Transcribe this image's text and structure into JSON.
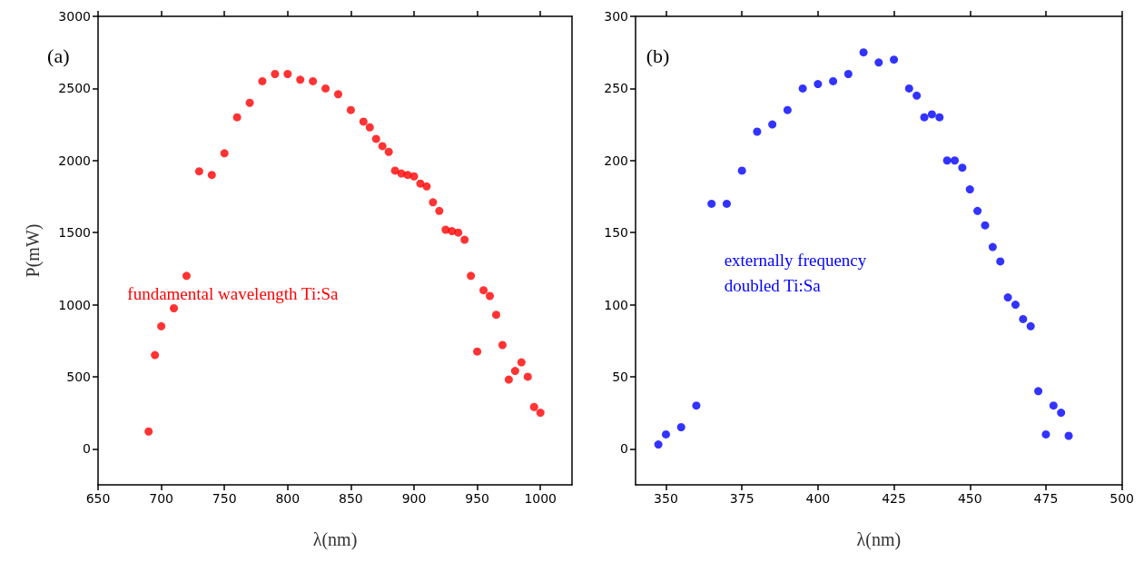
{
  "chart_data": [
    {
      "type": "scatter",
      "ylabel": "P(mW)",
      "xlabel": "λ(nm)",
      "annotations": [
        "(a)",
        "fundamental wavelength Ti:Sa"
      ],
      "marker": "circle",
      "grid": false,
      "xlim": [
        650,
        1025
      ],
      "xticks": [
        650,
        700,
        750,
        800,
        850,
        900,
        950,
        1000
      ],
      "ylim": [
        -250,
        3000
      ],
      "yticks": [
        0,
        500,
        1000,
        1500,
        2000,
        2500,
        3000
      ],
      "series": [
        {
          "color": "#ff0000",
          "x": [
            690,
            695,
            700,
            710,
            720,
            730,
            740,
            750,
            760,
            770,
            780,
            790,
            800,
            810,
            820,
            830,
            840,
            850,
            860,
            865,
            870,
            875,
            880,
            885,
            890,
            895,
            900,
            905,
            910,
            915,
            920,
            925,
            930,
            935,
            940,
            945,
            950,
            955,
            960,
            965,
            970,
            975,
            980,
            985,
            990,
            995,
            1000
          ],
          "values": [
            120,
            650,
            850,
            975,
            1200,
            1925,
            1900,
            2050,
            2300,
            2400,
            2550,
            2600,
            2600,
            2560,
            2550,
            2500,
            2460,
            2350,
            2270,
            2230,
            2150,
            2100,
            2060,
            1930,
            1910,
            1900,
            1890,
            1840,
            1820,
            1710,
            1650,
            1520,
            1510,
            1500,
            1450,
            1200,
            675,
            1100,
            1060,
            930,
            720,
            480,
            540,
            600,
            500,
            290,
            250
          ]
        }
      ]
    },
    {
      "type": "scatter",
      "xlabel": "λ(nm)",
      "annotations": [
        "(b)",
        "externally frequency\ndoubled Ti:Sa"
      ],
      "marker": "circle",
      "grid": false,
      "xlim": [
        340,
        500
      ],
      "xticks": [
        350,
        375,
        400,
        425,
        450,
        475,
        500
      ],
      "ylim": [
        -25,
        300
      ],
      "yticks": [
        0,
        50,
        100,
        150,
        200,
        250,
        300
      ],
      "series": [
        {
          "color": "#0000ff",
          "x": [
            347.5,
            350,
            355,
            360,
            365,
            370,
            375,
            380,
            385,
            390,
            395,
            400,
            405,
            410,
            415,
            420,
            425,
            430,
            432.5,
            435,
            437.5,
            440,
            442.5,
            445,
            447.5,
            450,
            452.5,
            455,
            457.5,
            460,
            462.5,
            465,
            467.5,
            470,
            472.5,
            475,
            477.5,
            480,
            482.5
          ],
          "values": [
            3,
            10,
            15,
            30,
            170,
            170,
            193,
            220,
            225,
            235,
            250,
            253,
            255,
            260,
            275,
            268,
            270,
            250,
            245,
            230,
            232,
            230,
            200,
            200,
            195,
            180,
            165,
            155,
            140,
            130,
            105,
            100,
            90,
            85,
            40,
            10,
            30,
            25,
            9
          ]
        }
      ]
    }
  ]
}
